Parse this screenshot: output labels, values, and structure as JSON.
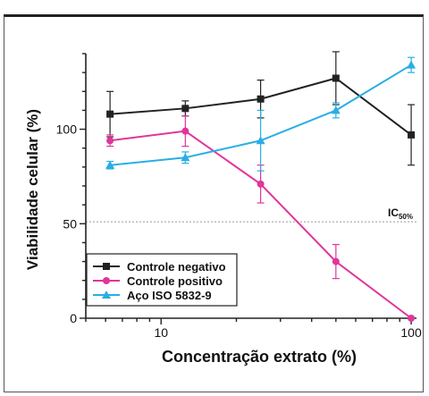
{
  "chart_data": {
    "type": "line",
    "xlabel": "Concentração extrato (%)",
    "ylabel": "Viabilidade celular (%)",
    "x_scale": "log",
    "xlim": [
      5,
      105
    ],
    "ylim": [
      0,
      140
    ],
    "x_ticks": [
      10,
      100
    ],
    "y_ticks": [
      0,
      50,
      100
    ],
    "x": [
      6.25,
      12.5,
      25,
      50,
      100
    ],
    "reference_line": {
      "label": "IC",
      "subscript": "50%",
      "y": 51
    },
    "legend_position": "bottom-left",
    "series": [
      {
        "name": "Controle negativo",
        "color": "#222222",
        "marker": "square",
        "values": [
          108,
          111,
          116,
          127,
          97
        ],
        "errors": [
          12,
          4,
          10,
          14,
          16
        ]
      },
      {
        "name": "Controle positivo",
        "color": "#e0359a",
        "marker": "circle",
        "values": [
          94,
          99,
          71,
          30,
          0
        ],
        "errors": [
          3,
          8,
          10,
          9,
          0
        ]
      },
      {
        "name": "Aço ISO 5832-9",
        "color": "#29aee3",
        "marker": "triangle",
        "values": [
          81,
          85,
          94,
          110,
          134
        ],
        "errors": [
          2,
          3,
          16,
          4,
          4
        ]
      }
    ]
  }
}
